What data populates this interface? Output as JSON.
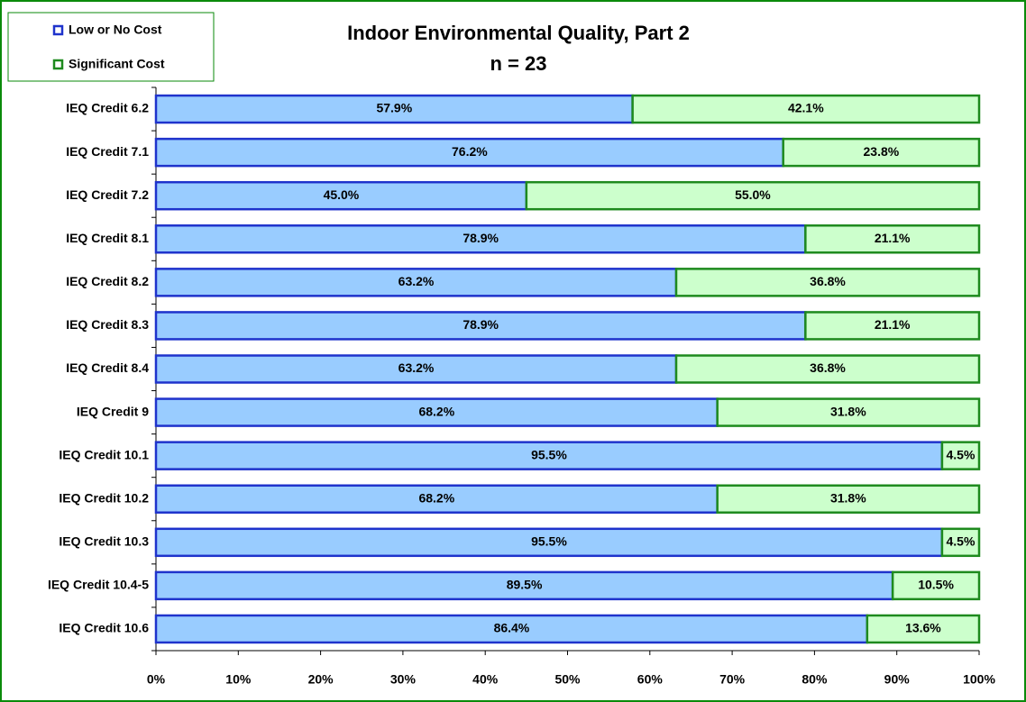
{
  "chart_data": {
    "type": "stacked-bar-horizontal",
    "title": "Indoor Environmental Quality, Part 2",
    "subtitle": "n = 23",
    "categories": [
      "IEQ Credit 6.2",
      "IEQ Credit 7.1",
      "IEQ Credit 7.2",
      "IEQ Credit 8.1",
      "IEQ Credit 8.2",
      "IEQ Credit 8.3",
      "IEQ Credit 8.4",
      "IEQ Credit 9",
      "IEQ Credit 10.1",
      "IEQ Credit 10.2",
      "IEQ Credit 10.3",
      "IEQ Credit 10.4-5",
      "IEQ Credit 10.6"
    ],
    "series": [
      {
        "name": "Low or No Cost",
        "color": "#99ccff",
        "stroke": "#1f33cc",
        "values": [
          57.9,
          76.2,
          45.0,
          78.9,
          63.2,
          78.9,
          63.2,
          68.2,
          95.5,
          68.2,
          95.5,
          89.5,
          86.4
        ],
        "value_labels": [
          "57.9%",
          "76.2%",
          "45.0%",
          "78.9%",
          "63.2%",
          "78.9%",
          "63.2%",
          "68.2%",
          "95.5%",
          "68.2%",
          "95.5%",
          "89.5%",
          "86.4%"
        ]
      },
      {
        "name": "Significant Cost",
        "color": "#ccffcc",
        "stroke": "#1e8a1e",
        "values": [
          42.1,
          23.8,
          55.0,
          21.1,
          36.8,
          21.1,
          36.8,
          31.8,
          4.5,
          31.8,
          4.5,
          10.5,
          13.6
        ],
        "value_labels": [
          "42.1%",
          "23.8%",
          "55.0%",
          "21.1%",
          "36.8%",
          "21.1%",
          "36.8%",
          "31.8%",
          "4.5%",
          "31.8%",
          "4.5%",
          "10.5%",
          "13.6%"
        ]
      }
    ],
    "xlim": [
      0,
      100
    ],
    "xticks": [
      {
        "value": 0,
        "label": "0%"
      },
      {
        "value": 10,
        "label": "10%"
      },
      {
        "value": 20,
        "label": "20%"
      },
      {
        "value": 30,
        "label": "30%"
      },
      {
        "value": 40,
        "label": "40%"
      },
      {
        "value": 50,
        "label": "50%"
      },
      {
        "value": 60,
        "label": "60%"
      },
      {
        "value": 70,
        "label": "70%"
      },
      {
        "value": 80,
        "label": "80%"
      },
      {
        "value": 90,
        "label": "90%"
      },
      {
        "value": 100,
        "label": "100%"
      }
    ],
    "legend": "top-left"
  }
}
